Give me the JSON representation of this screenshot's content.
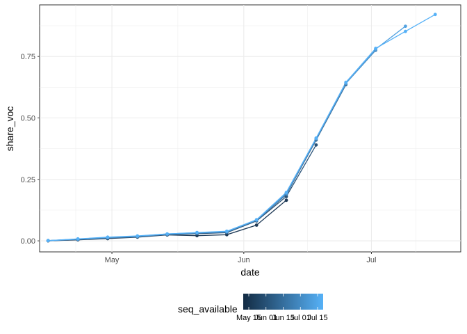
{
  "chart_data": {
    "type": "line",
    "xlabel": "date",
    "ylabel": "share_voc",
    "x_axis": {
      "type": "date",
      "range": [
        "2021-04-14",
        "2021-07-22"
      ],
      "ticks": [
        {
          "date": "2021-05-01",
          "label": "May"
        },
        {
          "date": "2021-06-01",
          "label": "Jun"
        },
        {
          "date": "2021-07-01",
          "label": "Jul"
        }
      ]
    },
    "y_axis": {
      "range": [
        -0.045,
        0.96
      ],
      "ticks": [
        0,
        0.25,
        0.5,
        0.75
      ],
      "tick_labels": [
        "0.00",
        "0.25",
        "0.50",
        "0.75"
      ]
    },
    "grid": true,
    "legend": {
      "title": "seq_available",
      "position": "bottom",
      "type": "colorbar",
      "color_low": "#132B43",
      "color_high": "#56B1F7",
      "tick_labels": [
        "May 15",
        "Jun 01",
        "Jun 15",
        "Jul 01",
        "Jul 15"
      ]
    },
    "series": [
      {
        "color": "#1f3a56",
        "points": [
          [
            "2021-04-16",
            0.0
          ],
          [
            "2021-04-23",
            0.004
          ],
          [
            "2021-04-30",
            0.009
          ],
          [
            "2021-05-07",
            0.015
          ],
          [
            "2021-05-14",
            0.024
          ],
          [
            "2021-05-21",
            0.021
          ],
          [
            "2021-05-28",
            0.025
          ],
          [
            "2021-06-04",
            0.064
          ],
          [
            "2021-06-11",
            0.165
          ]
        ]
      },
      {
        "color": "#2a5378",
        "points": [
          [
            "2021-04-16",
            0.0
          ],
          [
            "2021-04-23",
            0.005
          ],
          [
            "2021-04-30",
            0.011
          ],
          [
            "2021-05-07",
            0.016
          ],
          [
            "2021-05-14",
            0.025
          ],
          [
            "2021-05-21",
            0.029
          ],
          [
            "2021-05-28",
            0.033
          ],
          [
            "2021-06-04",
            0.081
          ],
          [
            "2021-06-11",
            0.18
          ],
          [
            "2021-06-18",
            0.39
          ]
        ]
      },
      {
        "color": "#3a6f9c",
        "points": [
          [
            "2021-04-16",
            0.001
          ],
          [
            "2021-04-23",
            0.006
          ],
          [
            "2021-04-30",
            0.012
          ],
          [
            "2021-05-07",
            0.017
          ],
          [
            "2021-05-14",
            0.026
          ],
          [
            "2021-05-21",
            0.031
          ],
          [
            "2021-05-28",
            0.035
          ],
          [
            "2021-06-04",
            0.083
          ],
          [
            "2021-06-11",
            0.188
          ],
          [
            "2021-06-18",
            0.41
          ],
          [
            "2021-06-25",
            0.635
          ]
        ]
      },
      {
        "color": "#4a8cc2",
        "points": [
          [
            "2021-04-16",
            0.001
          ],
          [
            "2021-04-23",
            0.007
          ],
          [
            "2021-04-30",
            0.013
          ],
          [
            "2021-05-07",
            0.018
          ],
          [
            "2021-05-14",
            0.027
          ],
          [
            "2021-05-21",
            0.032
          ],
          [
            "2021-05-28",
            0.037
          ],
          [
            "2021-06-04",
            0.084
          ],
          [
            "2021-06-11",
            0.192
          ],
          [
            "2021-06-18",
            0.415
          ],
          [
            "2021-06-25",
            0.64
          ],
          [
            "2021-07-02",
            0.775
          ]
        ]
      },
      {
        "color": "#53a2e0",
        "points": [
          [
            "2021-04-16",
            0.001
          ],
          [
            "2021-04-23",
            0.007
          ],
          [
            "2021-04-30",
            0.014
          ],
          [
            "2021-05-07",
            0.019
          ],
          [
            "2021-05-14",
            0.028
          ],
          [
            "2021-05-21",
            0.033
          ],
          [
            "2021-05-28",
            0.038
          ],
          [
            "2021-06-04",
            0.085
          ],
          [
            "2021-06-11",
            0.195
          ],
          [
            "2021-06-18",
            0.417
          ],
          [
            "2021-06-25",
            0.642
          ],
          [
            "2021-07-02",
            0.78
          ],
          [
            "2021-07-09",
            0.873
          ]
        ]
      },
      {
        "color": "#56b1f7",
        "points": [
          [
            "2021-04-16",
            0.001
          ],
          [
            "2021-04-23",
            0.008
          ],
          [
            "2021-04-30",
            0.015
          ],
          [
            "2021-05-07",
            0.02
          ],
          [
            "2021-05-14",
            0.028
          ],
          [
            "2021-05-21",
            0.034
          ],
          [
            "2021-05-28",
            0.039
          ],
          [
            "2021-06-04",
            0.086
          ],
          [
            "2021-06-11",
            0.197
          ],
          [
            "2021-06-18",
            0.418
          ],
          [
            "2021-06-25",
            0.645
          ],
          [
            "2021-07-02",
            0.783
          ],
          [
            "2021-07-09",
            0.852
          ],
          [
            "2021-07-16",
            0.921
          ]
        ]
      }
    ]
  }
}
